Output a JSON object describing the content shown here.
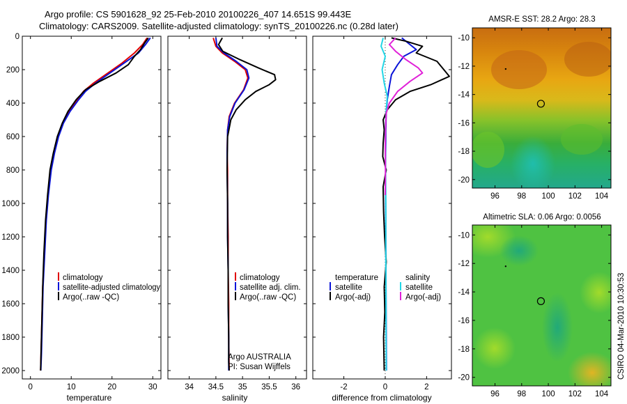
{
  "header": {
    "title_line1": "Argo profile: CS 5901628_92 25-Feb-2010 20100226_407 14.651S 99.443E",
    "title_line2": "Climatology: CARS2009. Satellite-adjusted climatology: synTS_20100226.nc (0.28d later)",
    "side_stamp": "CSIRO 04-Mar-2010 10:30:53"
  },
  "colors": {
    "climatology": "#e00000",
    "satellite": "#0a14d8",
    "argo": "#000000",
    "satellite_salinity": "#22d6e6",
    "argo_salinity": "#e020d8"
  },
  "chart_data": [
    {
      "type": "line",
      "id": "temperature",
      "xlabel": "temperature",
      "xlim": [
        -2,
        32
      ],
      "xticks": [
        0,
        10,
        20,
        30
      ],
      "ylim": [
        0,
        2050
      ],
      "yticks": [
        0,
        200,
        400,
        600,
        800,
        1000,
        1200,
        1400,
        1600,
        1800,
        2000
      ],
      "legend": [
        "climatology",
        "satellite-adjusted climatology",
        "Argo(..raw -QC)"
      ],
      "series": [
        {
          "name": "climatology",
          "color_key": "climatology",
          "x": [
            28.6,
            27.5,
            25.5,
            22.5,
            19,
            15.5,
            13,
            11.5,
            9.5,
            8,
            6.8,
            5.8,
            5,
            4.3,
            3.8,
            3.4,
            3,
            2.8,
            2.6,
            2.5
          ],
          "y": [
            10,
            50,
            100,
            160,
            220,
            280,
            330,
            380,
            450,
            520,
            600,
            700,
            800,
            950,
            1100,
            1300,
            1500,
            1700,
            1900,
            2000
          ]
        },
        {
          "name": "satellite",
          "color_key": "satellite",
          "x": [
            29.4,
            28.2,
            26.5,
            23,
            19.5,
            16,
            13.5,
            11.8,
            9.7,
            8.1,
            6.9,
            5.9,
            5.1,
            4.4,
            3.9,
            3.5,
            3.1,
            2.9,
            2.7,
            2.55
          ],
          "y": [
            10,
            50,
            100,
            160,
            220,
            280,
            330,
            380,
            450,
            520,
            600,
            700,
            800,
            950,
            1100,
            1300,
            1500,
            1700,
            1900,
            2000
          ]
        },
        {
          "name": "argo",
          "color_key": "argo",
          "x": [
            28.9,
            28,
            27,
            25.5,
            24,
            21,
            17,
            13.5,
            11.2,
            9.2,
            7.8,
            6.6,
            5.6,
            4.8,
            4.2,
            3.7,
            3.3,
            3,
            2.8,
            2.6,
            2.5
          ],
          "y": [
            10,
            40,
            80,
            120,
            170,
            220,
            270,
            320,
            380,
            450,
            520,
            600,
            700,
            800,
            950,
            1100,
            1300,
            1500,
            1700,
            1900,
            2000
          ]
        }
      ]
    },
    {
      "type": "line",
      "id": "salinity",
      "xlabel": "salinity",
      "xlim": [
        33.6,
        36.2
      ],
      "xticks": [
        34,
        34.5,
        35,
        35.5,
        36
      ],
      "ylim": [
        0,
        2050
      ],
      "legend": [
        "climatology",
        "satellite adj. clim.",
        "Argo(..raw -QC)"
      ],
      "annotation": [
        "Argo AUSTRALIA",
        "PI: Susan Wijffels"
      ],
      "series": [
        {
          "name": "climatology",
          "color_key": "climatology",
          "x": [
            34.45,
            34.5,
            34.62,
            34.85,
            35.05,
            35.1,
            35.02,
            34.85,
            34.75,
            34.72,
            34.71,
            34.72,
            34.72,
            34.73,
            34.73,
            34.74,
            34.74,
            34.75
          ],
          "y": [
            10,
            60,
            100,
            150,
            200,
            250,
            320,
            400,
            480,
            560,
            700,
            800,
            1000,
            1200,
            1400,
            1600,
            1800,
            2000
          ]
        },
        {
          "name": "satellite",
          "color_key": "satellite",
          "x": [
            34.5,
            34.52,
            34.65,
            34.88,
            35.08,
            35.12,
            35.03,
            34.86,
            34.76,
            34.72,
            34.71,
            34.71,
            34.72,
            34.72,
            34.73,
            34.73,
            34.74,
            34.74
          ],
          "y": [
            10,
            60,
            100,
            150,
            200,
            250,
            320,
            400,
            480,
            560,
            700,
            800,
            1000,
            1200,
            1400,
            1600,
            1800,
            2000
          ]
        },
        {
          "name": "argo",
          "color_key": "argo",
          "x": [
            34.62,
            34.55,
            34.63,
            34.95,
            35.3,
            35.6,
            35.62,
            35.5,
            35.25,
            35.05,
            34.88,
            34.78,
            34.72,
            34.71,
            34.72,
            34.72,
            34.73,
            34.73,
            34.74,
            34.74,
            34.75
          ],
          "y": [
            10,
            50,
            90,
            140,
            190,
            230,
            260,
            290,
            330,
            380,
            440,
            500,
            600,
            800,
            1000,
            1200,
            1400,
            1600,
            1800,
            1950,
            2000
          ]
        }
      ]
    },
    {
      "type": "line",
      "id": "difference",
      "xlabel": "difference from climatology",
      "xlim": [
        -3.5,
        3.2
      ],
      "xticks": [
        -2,
        0,
        2
      ],
      "ylim": [
        0,
        2050
      ],
      "legend_left_title": "temperature",
      "legend_left": [
        "satellite",
        "Argo(-adj)"
      ],
      "legend_right_title": "salinity",
      "legend_right": [
        "satellite",
        "Argo(-adj)"
      ],
      "series": [
        {
          "name": "temperature satellite",
          "color_key": "satellite",
          "x": [
            0.8,
            1.1,
            1.5,
            0.9,
            0.6,
            0.3,
            0.2,
            0.1,
            0.05,
            0.03,
            0.02,
            0.02,
            0.03,
            0.04,
            0.05,
            0.06
          ],
          "y": [
            10,
            40,
            80,
            120,
            170,
            230,
            300,
            380,
            460,
            560,
            700,
            900,
            1200,
            1500,
            1800,
            2000
          ]
        },
        {
          "name": "temperature argo",
          "color_key": "argo",
          "x": [
            0.3,
            1.0,
            1.8,
            1.5,
            2.5,
            3.1,
            2.2,
            1.2,
            0.5,
            0.1,
            -0.1,
            -0.05,
            -0.1,
            -0.12,
            0.05,
            -0.1,
            -0.08,
            -0.03,
            0.05,
            -0.05,
            -0.02,
            -0.08,
            -0.05
          ],
          "y": [
            10,
            30,
            60,
            100,
            150,
            240,
            290,
            330,
            380,
            440,
            500,
            560,
            640,
            720,
            800,
            900,
            1050,
            1200,
            1350,
            1500,
            1650,
            1800,
            2000
          ]
        },
        {
          "name": "salinity satellite",
          "color_key": "satellite_salinity",
          "x": [
            -0.1,
            -0.2,
            0.0,
            -0.15,
            -0.05,
            0.1,
            0.05,
            0.02,
            0.0,
            0.02,
            0.03,
            0.03,
            0.04,
            0.04,
            0.05
          ],
          "y": [
            10,
            60,
            120,
            200,
            280,
            360,
            440,
            520,
            600,
            800,
            1000,
            1300,
            1600,
            1800,
            2000
          ]
        },
        {
          "name": "salinity argo",
          "color_key": "argo_salinity",
          "x": [
            0.5,
            0.2,
            0.5,
            1.0,
            1.6,
            1.8,
            1.2,
            0.6,
            0.2,
            0.05,
            0.02,
            0.0,
            0.01,
            0.0
          ],
          "y": [
            10,
            50,
            90,
            140,
            190,
            220,
            270,
            330,
            400,
            460,
            540,
            640,
            800,
            950
          ]
        }
      ]
    },
    {
      "type": "heatmap",
      "id": "sst",
      "title": "AMSR-E SST: 28.2 Argo: 28.3",
      "xlim": [
        94.3,
        104.7
      ],
      "xticks": [
        96,
        98,
        100,
        102,
        104
      ],
      "ylim": [
        -20.6,
        -9.3
      ],
      "yticks": [
        -10,
        -12,
        -14,
        -16,
        -18,
        -20
      ],
      "profile_marker": {
        "lon": 99.443,
        "lat": -14.651
      },
      "secondary_marker": {
        "lon": 96.8,
        "lat": -12.2
      }
    },
    {
      "type": "heatmap",
      "id": "sla",
      "title": "Altimetric SLA: 0.06 Argo: 0.0056",
      "xlim": [
        94.3,
        104.7
      ],
      "xticks": [
        96,
        98,
        100,
        102,
        104
      ],
      "ylim": [
        -20.6,
        -9.3
      ],
      "yticks": [
        -10,
        -12,
        -14,
        -16,
        -18,
        -20
      ],
      "profile_marker": {
        "lon": 99.443,
        "lat": -14.651
      },
      "secondary_marker": {
        "lon": 96.8,
        "lat": -12.2
      }
    }
  ]
}
